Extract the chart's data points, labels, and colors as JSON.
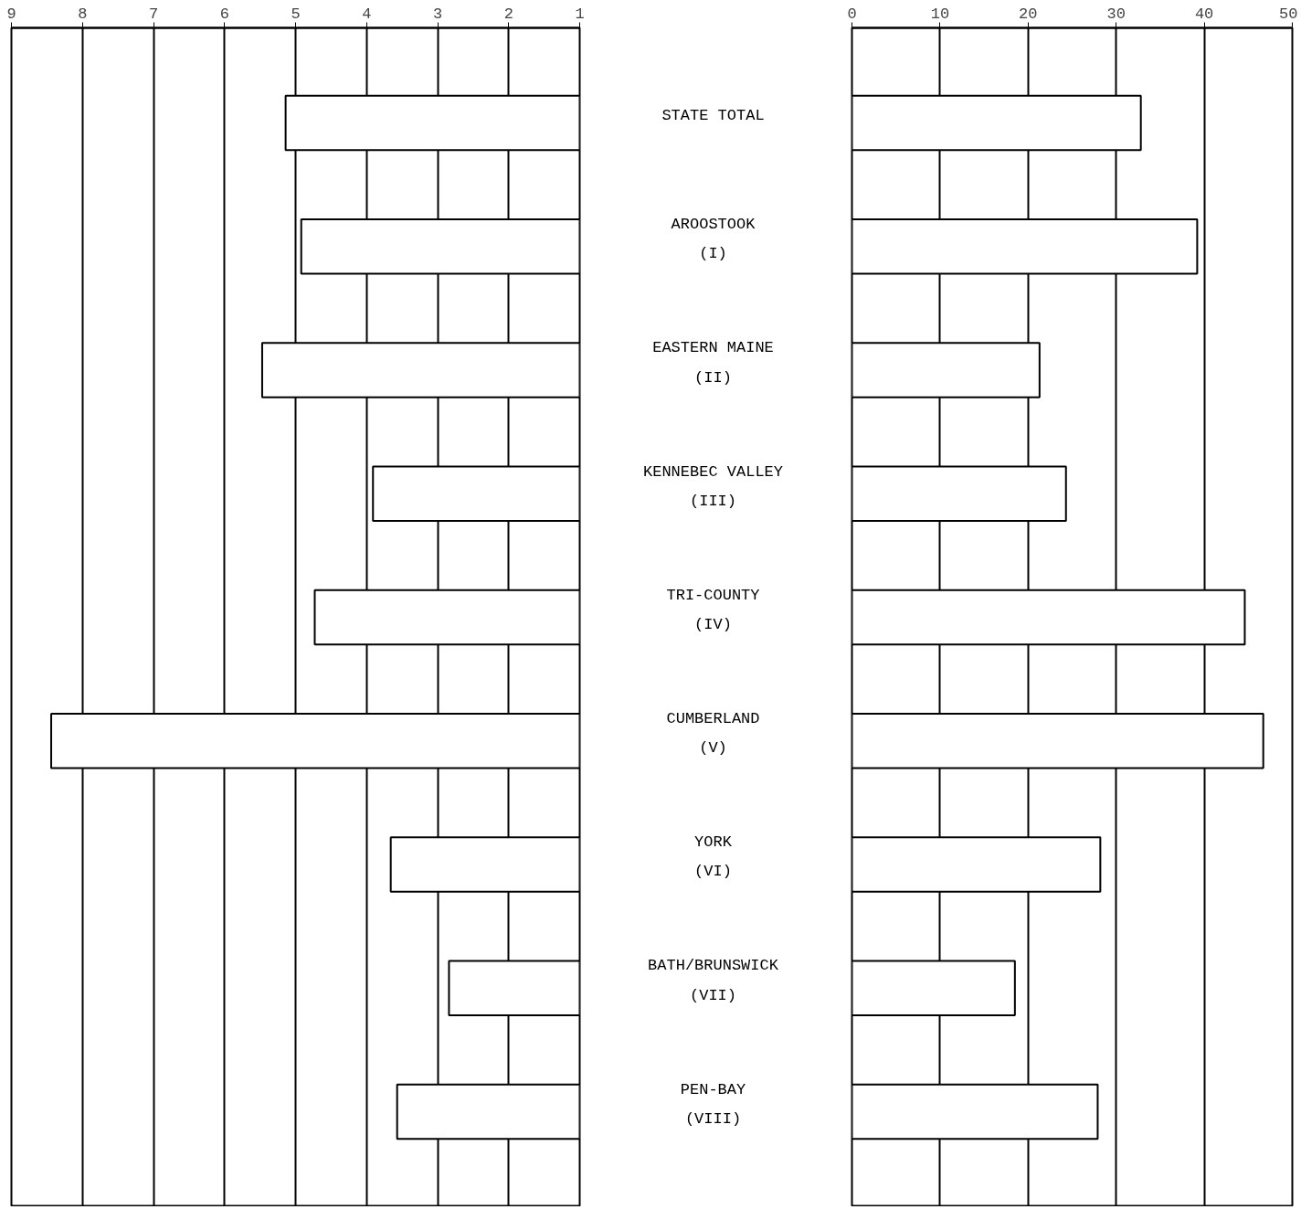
{
  "chart_data": [
    {
      "type": "bar",
      "orientation": "horizontal",
      "categories": [
        "STATE TOTAL",
        "AROOSTOOK\n(I)",
        "EASTERN MAINE\n(II)",
        "KENNEBEC VALLEY\n(III)",
        "TRI-COUNTY\n(IV)",
        "CUMBERLAND\n(V)",
        "YORK\n(VI)",
        "BATH/BRUNSWICK\n(VII)",
        "PEN-BAY\n(VIII)"
      ],
      "base": [
        1,
        1,
        1,
        1,
        1,
        1,
        1,
        1,
        1
      ],
      "values": [
        4.14,
        3.92,
        4.47,
        2.91,
        3.73,
        7.44,
        2.66,
        1.84,
        2.57
      ],
      "color": "#ffffff",
      "xlim": [
        9,
        1
      ],
      "xticks": [
        9,
        8,
        7,
        6,
        5,
        4,
        3,
        2,
        1
      ],
      "grid": "x"
    },
    {
      "type": "bar",
      "orientation": "horizontal",
      "values": [
        32.8,
        39.2,
        21.3,
        24.3,
        44.6,
        46.7,
        28.2,
        18.5,
        27.9
      ],
      "color": "#ffffff",
      "xlim": [
        0,
        50
      ],
      "xticks": [
        0,
        10,
        20,
        30,
        40,
        50
      ],
      "grid": "x",
      "tick_labels": "x"
    }
  ]
}
